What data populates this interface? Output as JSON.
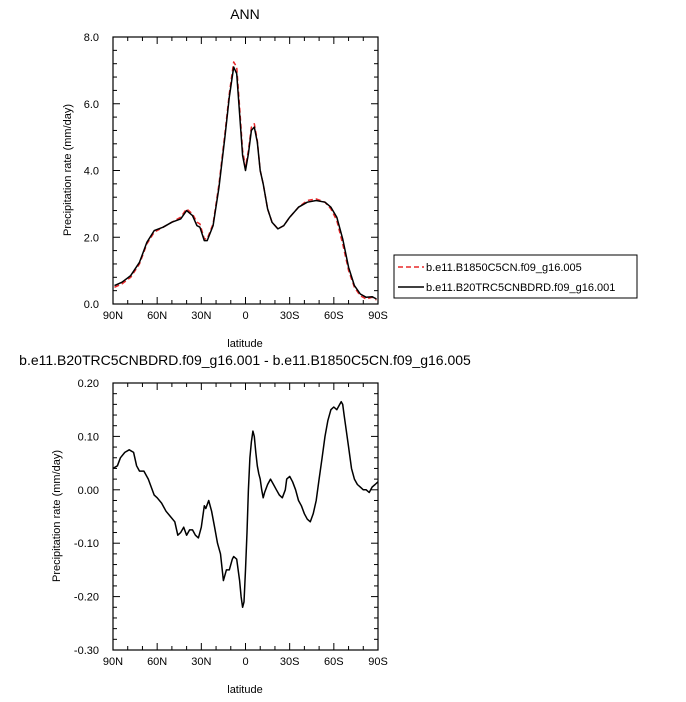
{
  "chart_data": [
    {
      "type": "line",
      "title": "ANN",
      "xlabel": "latitude",
      "ylabel": "Precipitation rate (mm/day)",
      "xlim": [
        90,
        -90
      ],
      "ylim": [
        0,
        8
      ],
      "xticks": [
        {
          "value": 90,
          "label": "90N"
        },
        {
          "value": 60,
          "label": "60N"
        },
        {
          "value": 30,
          "label": "30N"
        },
        {
          "value": 0,
          "label": "0"
        },
        {
          "value": -30,
          "label": "30S"
        },
        {
          "value": -60,
          "label": "60S"
        },
        {
          "value": -90,
          "label": "90S"
        }
      ],
      "yticks": [
        {
          "value": 0,
          "label": "0.0"
        },
        {
          "value": 2,
          "label": "2.0"
        },
        {
          "value": 4,
          "label": "4.0"
        },
        {
          "value": 6,
          "label": "6.0"
        },
        {
          "value": 8,
          "label": "8.0"
        }
      ],
      "legend": "right",
      "series": [
        {
          "name": "b.e11.B1850C5CN.f09_g16.005",
          "color": "#e8282a",
          "dash": "dashed",
          "x": [
            89,
            84,
            78,
            72,
            67,
            62,
            56,
            50,
            44,
            40,
            36,
            33,
            31,
            28,
            26,
            22,
            18,
            14,
            11,
            8,
            6,
            4,
            2,
            0,
            -2,
            -4,
            -6,
            -8,
            -10,
            -12,
            -15,
            -18,
            -22,
            -26,
            -30,
            -36,
            -42,
            -48,
            -54,
            -58,
            -62,
            -66,
            -70,
            -74,
            -78,
            -82,
            -86,
            -89
          ],
          "y": [
            0.5,
            0.6,
            0.8,
            1.2,
            1.8,
            2.15,
            2.3,
            2.45,
            2.6,
            2.85,
            2.7,
            2.45,
            2.4,
            1.95,
            1.95,
            2.4,
            3.6,
            5.1,
            6.3,
            7.25,
            7.1,
            5.9,
            4.6,
            4.1,
            4.6,
            5.3,
            5.4,
            4.9,
            4.0,
            3.6,
            2.85,
            2.45,
            2.25,
            2.35,
            2.6,
            2.9,
            3.1,
            3.15,
            3.05,
            2.85,
            2.5,
            1.8,
            1.0,
            0.5,
            0.25,
            0.15,
            0.2,
            0.12
          ]
        },
        {
          "name": "b.e11.B20TRC5CNBDRD.f09_g16.001",
          "color": "#000000",
          "dash": "solid",
          "x": [
            89,
            84,
            78,
            72,
            67,
            62,
            56,
            50,
            44,
            40,
            36,
            33,
            31,
            28,
            26,
            22,
            18,
            14,
            11,
            8,
            6,
            4,
            2,
            0,
            -2,
            -4,
            -6,
            -8,
            -10,
            -12,
            -15,
            -18,
            -22,
            -26,
            -30,
            -36,
            -42,
            -48,
            -54,
            -58,
            -62,
            -66,
            -70,
            -74,
            -78,
            -82,
            -86,
            -89
          ],
          "y": [
            0.55,
            0.65,
            0.85,
            1.25,
            1.85,
            2.2,
            2.3,
            2.45,
            2.55,
            2.8,
            2.65,
            2.35,
            2.3,
            1.9,
            1.9,
            2.35,
            3.5,
            5.0,
            6.2,
            7.1,
            6.9,
            5.7,
            4.45,
            4.0,
            4.5,
            5.2,
            5.3,
            4.85,
            4.0,
            3.6,
            2.85,
            2.45,
            2.25,
            2.35,
            2.6,
            2.9,
            3.05,
            3.1,
            3.05,
            2.9,
            2.6,
            1.95,
            1.1,
            0.55,
            0.3,
            0.2,
            0.22,
            0.15
          ]
        }
      ]
    },
    {
      "type": "line",
      "title": "b.e11.B20TRC5CNBDRD.f09_g16.001 - b.e11.B1850C5CN.f09_g16.005",
      "xlabel": "latitude",
      "ylabel": "Precipitation rate (mm/day)",
      "xlim": [
        90,
        -90
      ],
      "ylim": [
        -0.3,
        0.2
      ],
      "xticks": [
        {
          "value": 90,
          "label": "90N"
        },
        {
          "value": 60,
          "label": "60N"
        },
        {
          "value": 30,
          "label": "30N"
        },
        {
          "value": 0,
          "label": "0"
        },
        {
          "value": -30,
          "label": "30S"
        },
        {
          "value": -60,
          "label": "60S"
        },
        {
          "value": -90,
          "label": "90S"
        }
      ],
      "yticks": [
        {
          "value": 0.2,
          "label": "0.20"
        },
        {
          "value": 0.1,
          "label": "0.10"
        },
        {
          "value": 0.0,
          "label": "0.00"
        },
        {
          "value": -0.1,
          "label": "-0.10"
        },
        {
          "value": -0.2,
          "label": "-0.20"
        },
        {
          "value": -0.3,
          "label": "-0.30"
        }
      ],
      "series": [
        {
          "color": "#000000",
          "dash": "solid",
          "x": [
            90,
            87,
            85,
            82,
            79,
            76,
            74,
            72,
            69,
            66,
            62,
            60,
            57,
            54,
            51,
            48,
            46,
            44,
            42,
            40,
            38,
            36,
            34,
            32,
            30,
            28,
            27,
            25,
            23,
            21,
            19,
            17,
            15,
            13,
            11,
            9,
            8,
            6,
            4,
            3,
            2,
            1,
            0,
            -1,
            -2,
            -3,
            -4,
            -5,
            -6,
            -7,
            -8,
            -9,
            -10,
            -11,
            -12,
            -13,
            -15,
            -17,
            -19,
            -21,
            -23,
            -25,
            -27,
            -28,
            -30,
            -32,
            -34,
            -36,
            -38,
            -40,
            -42,
            -44,
            -46,
            -48,
            -50,
            -52,
            -54,
            -56,
            -58,
            -60,
            -62,
            -64,
            -65,
            -66,
            -67,
            -68,
            -70,
            -72,
            -74,
            -76,
            -78,
            -80,
            -82,
            -84,
            -86,
            -88,
            -90
          ],
          "y": [
            0.04,
            0.045,
            0.06,
            0.07,
            0.075,
            0.07,
            0.045,
            0.035,
            0.035,
            0.02,
            -0.01,
            -0.015,
            -0.025,
            -0.04,
            -0.05,
            -0.06,
            -0.085,
            -0.08,
            -0.07,
            -0.085,
            -0.075,
            -0.075,
            -0.085,
            -0.09,
            -0.07,
            -0.03,
            -0.035,
            -0.02,
            -0.04,
            -0.07,
            -0.1,
            -0.12,
            -0.17,
            -0.15,
            -0.15,
            -0.13,
            -0.125,
            -0.13,
            -0.17,
            -0.2,
            -0.22,
            -0.21,
            -0.15,
            -0.08,
            0.0,
            0.06,
            0.09,
            0.11,
            0.1,
            0.07,
            0.045,
            0.03,
            0.02,
            0.0,
            -0.015,
            -0.005,
            0.01,
            0.02,
            0.01,
            0.0,
            -0.01,
            -0.015,
            0.0,
            0.02,
            0.025,
            0.015,
            0.0,
            -0.02,
            -0.03,
            -0.045,
            -0.055,
            -0.06,
            -0.045,
            -0.02,
            0.02,
            0.06,
            0.1,
            0.13,
            0.15,
            0.155,
            0.15,
            0.16,
            0.165,
            0.16,
            0.14,
            0.12,
            0.08,
            0.04,
            0.02,
            0.01,
            0.005,
            0.0,
            0.0,
            -0.005,
            0.005,
            0.01,
            0.015
          ]
        }
      ]
    }
  ]
}
